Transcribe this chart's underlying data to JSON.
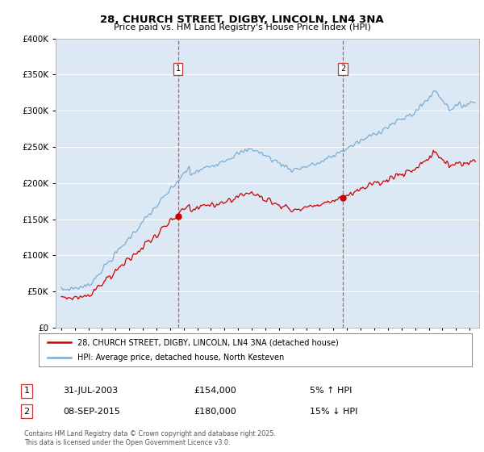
{
  "title_line1": "28, CHURCH STREET, DIGBY, LINCOLN, LN4 3NA",
  "title_line2": "Price paid vs. HM Land Registry's House Price Index (HPI)",
  "legend_label1": "28, CHURCH STREET, DIGBY, LINCOLN, LN4 3NA (detached house)",
  "legend_label2": "HPI: Average price, detached house, North Kesteven",
  "annotation1": {
    "num": "1",
    "date": "31-JUL-2003",
    "price": "£154,000",
    "pct": "5% ↑ HPI"
  },
  "annotation2": {
    "num": "2",
    "date": "08-SEP-2015",
    "price": "£180,000",
    "pct": "15% ↓ HPI"
  },
  "footnote": "Contains HM Land Registry data © Crown copyright and database right 2025.\nThis data is licensed under the Open Government Licence v3.0.",
  "color_property": "#cc0000",
  "color_hpi": "#7aadd4",
  "vline_color": "#cc0000",
  "plot_bg": "#dce9f5",
  "ylim": [
    0,
    400000
  ],
  "yticks": [
    0,
    50000,
    100000,
    150000,
    200000,
    250000,
    300000,
    350000,
    400000
  ],
  "sale1_year": 2003.583,
  "sale1_price": 154000,
  "sale2_year": 2015.69,
  "sale2_price": 180000,
  "xstart": 1995,
  "xend": 2025
}
